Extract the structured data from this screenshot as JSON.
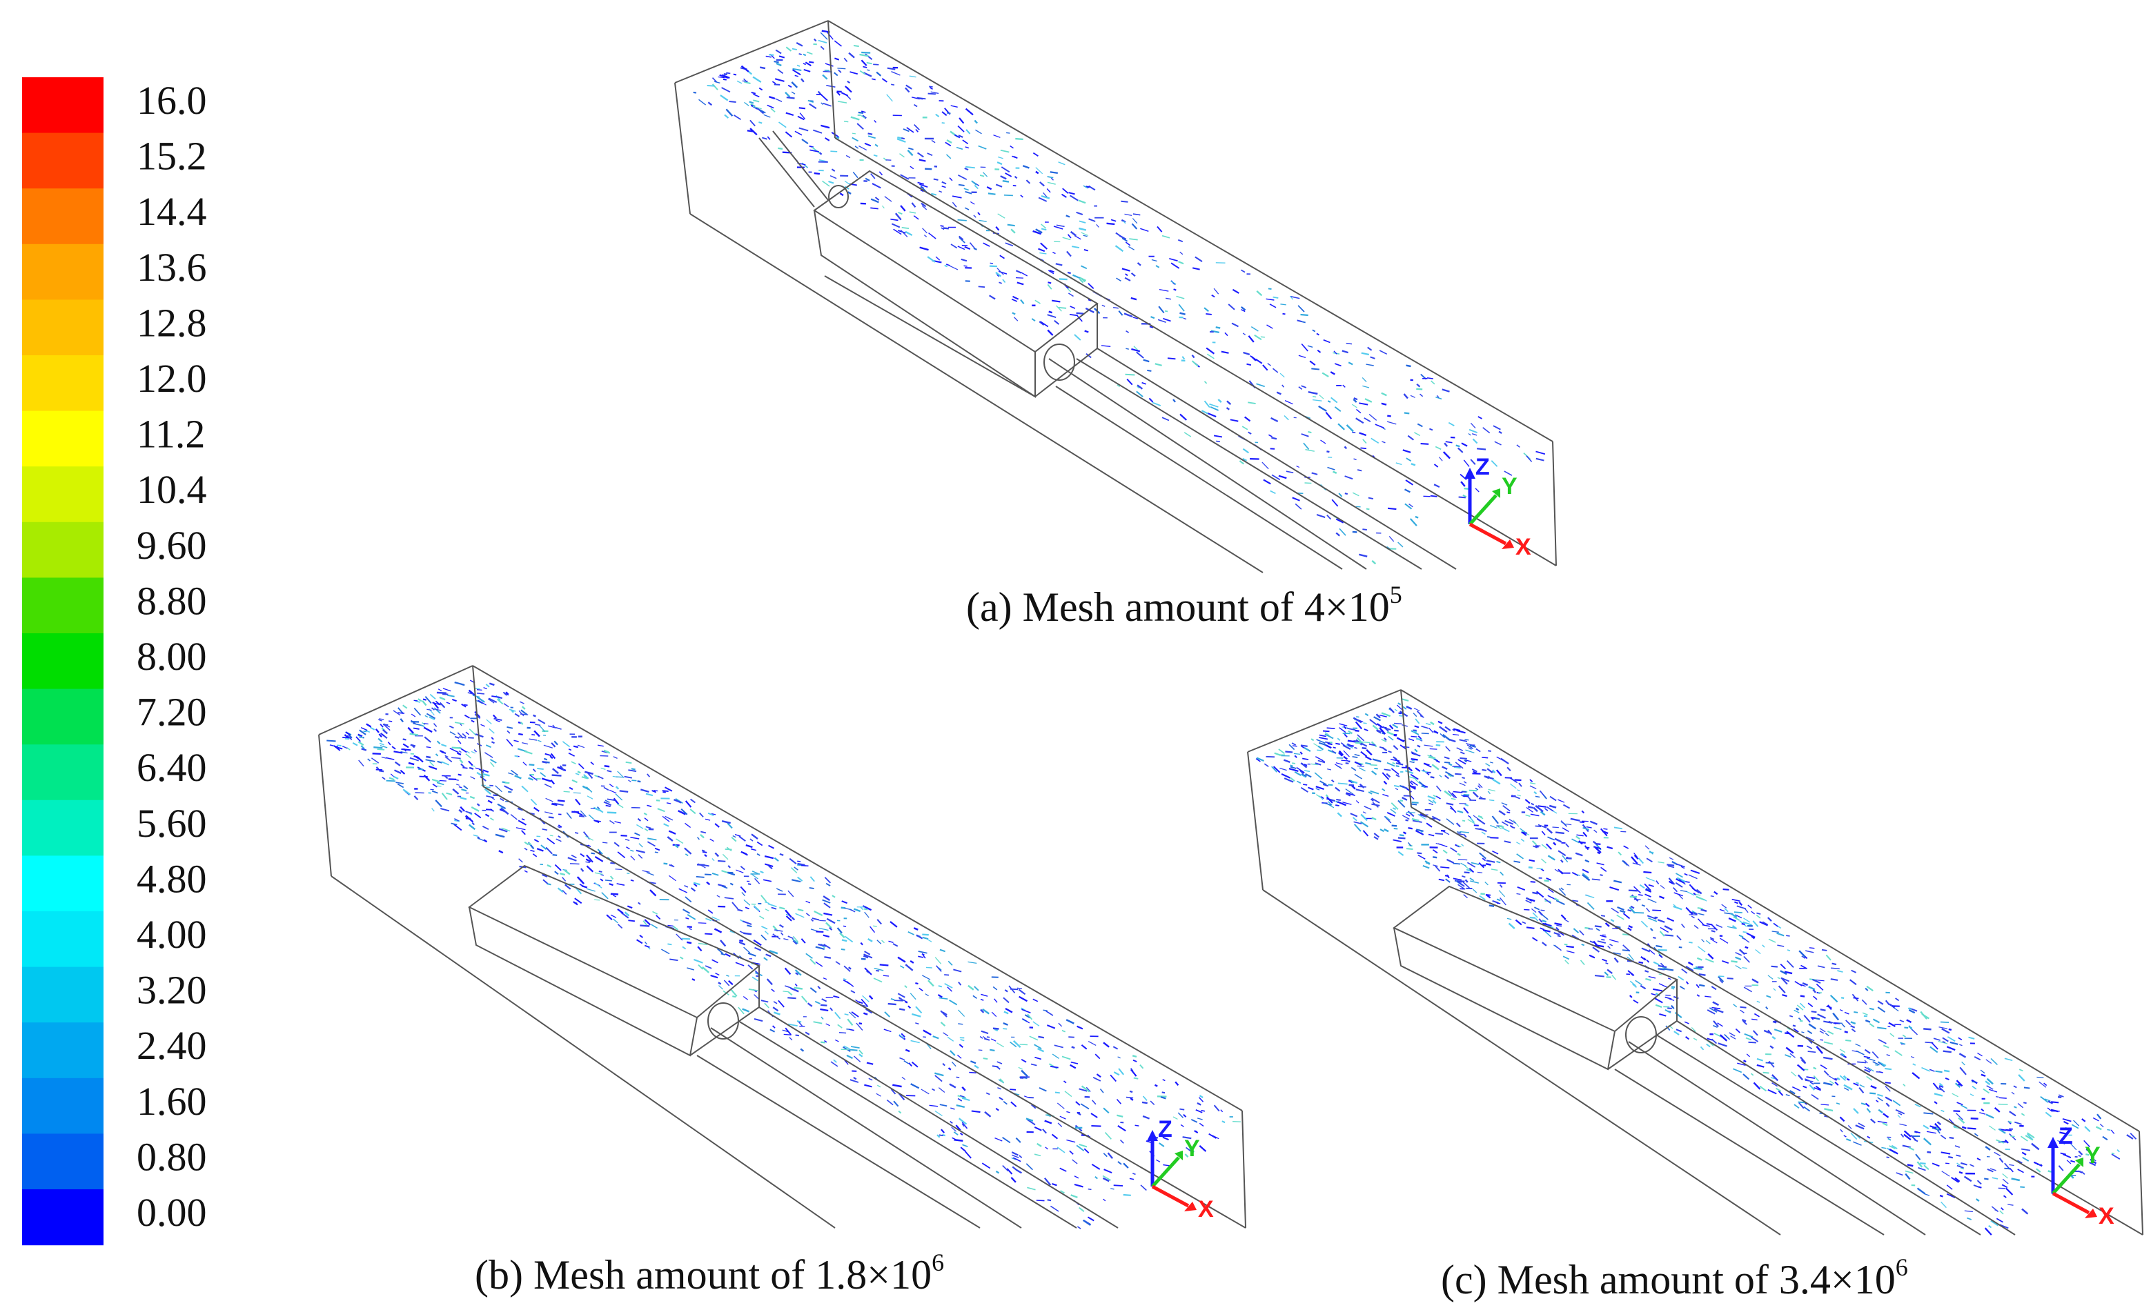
{
  "colorbar": {
    "labels": [
      "16.0",
      "15.2",
      "14.4",
      "13.6",
      "12.8",
      "12.0",
      "11.2",
      "10.4",
      "9.60",
      "8.80",
      "8.00",
      "7.20",
      "6.40",
      "5.60",
      "4.80",
      "4.00",
      "3.20",
      "2.40",
      "1.60",
      "0.80",
      "0.00"
    ],
    "colors": [
      "#ff0000",
      "#ff4000",
      "#ff7a00",
      "#ffa600",
      "#ffc000",
      "#ffdc00",
      "#ffff00",
      "#d6f500",
      "#a8eb00",
      "#44dd00",
      "#00dd00",
      "#00e050",
      "#00e88a",
      "#00f0c0",
      "#00ffff",
      "#00e8f8",
      "#00c8f0",
      "#00a8f0",
      "#0088f0",
      "#0060f0",
      "#0000ff"
    ]
  },
  "panels": [
    {
      "id": "a",
      "caption_prefix": "(a) Mesh amount of ",
      "caption_base": "4×10",
      "caption_exp": "5",
      "density": 0.6
    },
    {
      "id": "b",
      "caption_prefix": "(b) Mesh amount of ",
      "caption_base": "1.8×10",
      "caption_exp": "6",
      "density": 1.0
    },
    {
      "id": "c",
      "caption_prefix": "(c) Mesh amount of ",
      "caption_base": "3.4×10",
      "caption_exp": "6",
      "density": 1.2
    }
  ],
  "axes_triad": {
    "z": "Z",
    "y": "Y",
    "x": "X",
    "z_color": "#1a1aff",
    "y_color": "#22cc22",
    "x_color": "#ff1a1a"
  },
  "streamline_colors": [
    "#1a1aff",
    "#3344ee",
    "#2266dd",
    "#33aadd",
    "#55ccee",
    "#66ddcc"
  ]
}
